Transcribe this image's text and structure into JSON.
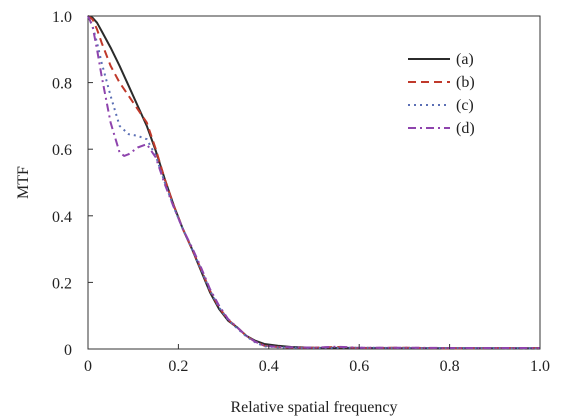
{
  "chart_data": {
    "type": "line",
    "title": "",
    "xlabel": "Relative spatial frequency",
    "ylabel": "MTF",
    "xlim": [
      0,
      1.0
    ],
    "ylim": [
      0,
      1.0
    ],
    "grid": false,
    "legend_position": "top-right",
    "xticks": [
      0,
      0.2,
      0.4,
      0.6,
      0.8,
      1.0
    ],
    "xtick_labels": [
      "0",
      "0.2",
      "0.4",
      "0.6",
      "0.8",
      "1.0"
    ],
    "yticks": [
      0,
      0.2,
      0.4,
      0.6,
      0.8,
      1.0
    ],
    "ytick_labels": [
      "0",
      "0.2",
      "0.4",
      "0.6",
      "0.8",
      "1.0"
    ],
    "series": [
      {
        "name": "(a)",
        "color": "#2b2b2b",
        "dash": "solid",
        "points": [
          [
            0,
            1.0
          ],
          [
            0.01,
            0.995
          ],
          [
            0.02,
            0.98
          ],
          [
            0.03,
            0.955
          ],
          [
            0.05,
            0.905
          ],
          [
            0.07,
            0.85
          ],
          [
            0.09,
            0.79
          ],
          [
            0.11,
            0.73
          ],
          [
            0.13,
            0.67
          ],
          [
            0.15,
            0.595
          ],
          [
            0.17,
            0.51
          ],
          [
            0.19,
            0.43
          ],
          [
            0.21,
            0.36
          ],
          [
            0.23,
            0.3
          ],
          [
            0.25,
            0.235
          ],
          [
            0.27,
            0.17
          ],
          [
            0.29,
            0.12
          ],
          [
            0.31,
            0.085
          ],
          [
            0.33,
            0.065
          ],
          [
            0.35,
            0.04
          ],
          [
            0.37,
            0.025
          ],
          [
            0.39,
            0.015
          ],
          [
            0.42,
            0.01
          ],
          [
            0.45,
            0.006
          ],
          [
            0.5,
            0.004
          ],
          [
            0.6,
            0.003
          ],
          [
            0.7,
            0.002
          ],
          [
            0.8,
            0.002
          ],
          [
            0.9,
            0.002
          ],
          [
            1.0,
            0.002
          ]
        ]
      },
      {
        "name": "(b)",
        "color": "#c0392b",
        "dash": "dashed",
        "points": [
          [
            0,
            1.0
          ],
          [
            0.01,
            0.99
          ],
          [
            0.02,
            0.96
          ],
          [
            0.03,
            0.92
          ],
          [
            0.05,
            0.85
          ],
          [
            0.07,
            0.8
          ],
          [
            0.09,
            0.76
          ],
          [
            0.11,
            0.72
          ],
          [
            0.13,
            0.68
          ],
          [
            0.15,
            0.6
          ],
          [
            0.17,
            0.51
          ],
          [
            0.19,
            0.43
          ],
          [
            0.21,
            0.36
          ],
          [
            0.23,
            0.3
          ],
          [
            0.25,
            0.24
          ],
          [
            0.27,
            0.175
          ],
          [
            0.29,
            0.125
          ],
          [
            0.31,
            0.088
          ],
          [
            0.33,
            0.065
          ],
          [
            0.35,
            0.04
          ],
          [
            0.37,
            0.022
          ],
          [
            0.39,
            0.01
          ],
          [
            0.42,
            0.006
          ],
          [
            0.45,
            0.004
          ],
          [
            0.5,
            0.004
          ],
          [
            0.55,
            0.006
          ],
          [
            0.6,
            0.003
          ],
          [
            0.7,
            0.004
          ],
          [
            0.8,
            0.002
          ],
          [
            0.9,
            0.003
          ],
          [
            1.0,
            0.003
          ]
        ]
      },
      {
        "name": "(c)",
        "color": "#5b6fb5",
        "dash": "dotted",
        "points": [
          [
            0,
            1.0
          ],
          [
            0.01,
            0.97
          ],
          [
            0.02,
            0.92
          ],
          [
            0.03,
            0.86
          ],
          [
            0.05,
            0.76
          ],
          [
            0.07,
            0.67
          ],
          [
            0.09,
            0.645
          ],
          [
            0.11,
            0.64
          ],
          [
            0.13,
            0.63
          ],
          [
            0.15,
            0.58
          ],
          [
            0.17,
            0.5
          ],
          [
            0.19,
            0.425
          ],
          [
            0.21,
            0.36
          ],
          [
            0.23,
            0.3
          ],
          [
            0.25,
            0.24
          ],
          [
            0.27,
            0.175
          ],
          [
            0.29,
            0.125
          ],
          [
            0.31,
            0.088
          ],
          [
            0.33,
            0.062
          ],
          [
            0.35,
            0.038
          ],
          [
            0.37,
            0.02
          ],
          [
            0.39,
            0.008
          ],
          [
            0.42,
            0.005
          ],
          [
            0.45,
            0.004
          ],
          [
            0.5,
            0.003
          ],
          [
            0.6,
            0.004
          ],
          [
            0.7,
            0.003
          ],
          [
            0.8,
            0.003
          ],
          [
            0.9,
            0.003
          ],
          [
            1.0,
            0.002
          ]
        ]
      },
      {
        "name": "(d)",
        "color": "#8e44ad",
        "dash": "dashdot",
        "points": [
          [
            0,
            1.0
          ],
          [
            0.01,
            0.97
          ],
          [
            0.02,
            0.9
          ],
          [
            0.03,
            0.82
          ],
          [
            0.05,
            0.68
          ],
          [
            0.07,
            0.59
          ],
          [
            0.08,
            0.58
          ],
          [
            0.09,
            0.585
          ],
          [
            0.11,
            0.605
          ],
          [
            0.13,
            0.615
          ],
          [
            0.15,
            0.575
          ],
          [
            0.17,
            0.495
          ],
          [
            0.19,
            0.425
          ],
          [
            0.21,
            0.36
          ],
          [
            0.23,
            0.305
          ],
          [
            0.25,
            0.245
          ],
          [
            0.27,
            0.18
          ],
          [
            0.29,
            0.13
          ],
          [
            0.31,
            0.09
          ],
          [
            0.33,
            0.065
          ],
          [
            0.35,
            0.04
          ],
          [
            0.37,
            0.022
          ],
          [
            0.39,
            0.01
          ],
          [
            0.42,
            0.006
          ],
          [
            0.45,
            0.005
          ],
          [
            0.5,
            0.004
          ],
          [
            0.55,
            0.007
          ],
          [
            0.6,
            0.004
          ],
          [
            0.7,
            0.004
          ],
          [
            0.8,
            0.003
          ],
          [
            0.9,
            0.003
          ],
          [
            1.0,
            0.003
          ]
        ]
      }
    ]
  }
}
